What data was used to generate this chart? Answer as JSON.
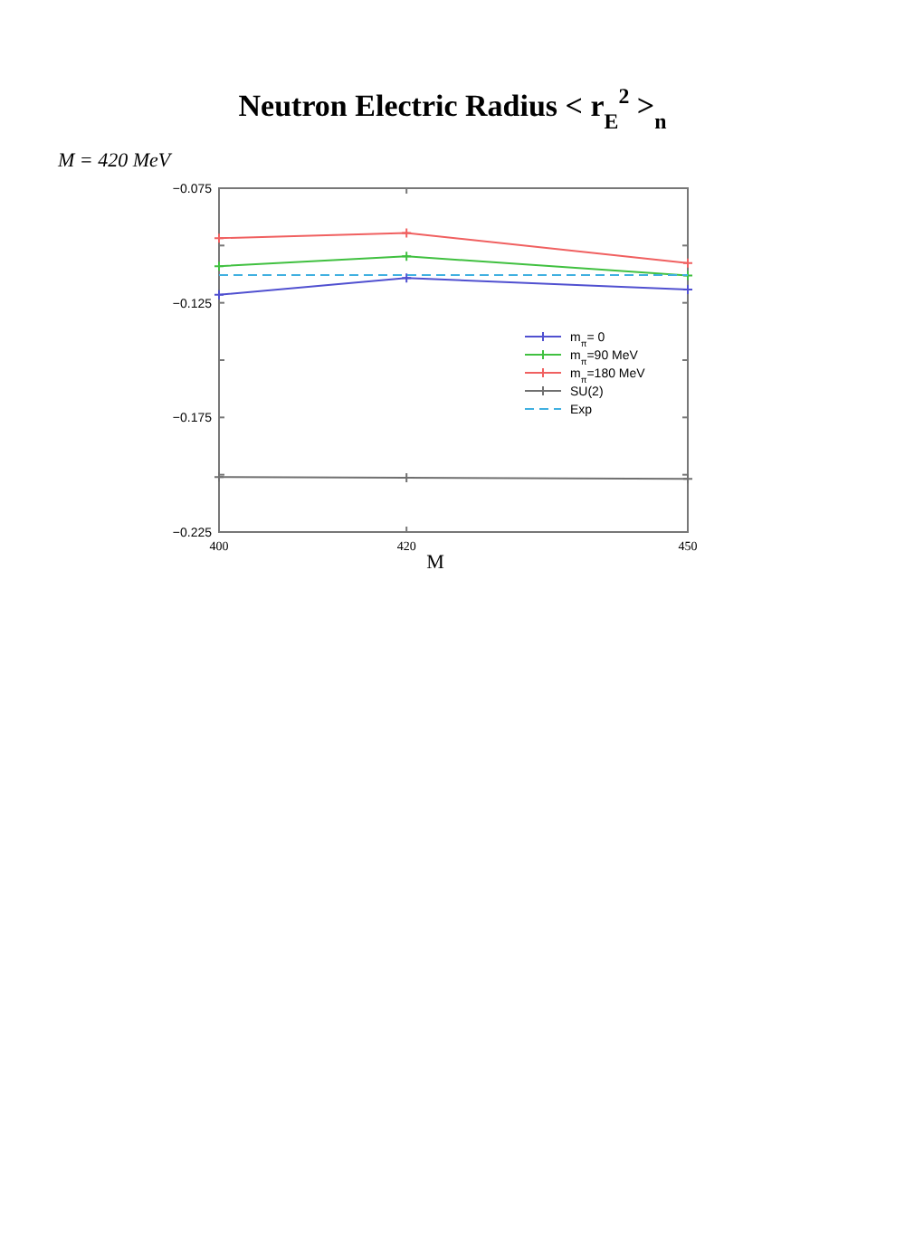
{
  "chart_data": {
    "type": "line",
    "title": "Neutron Electric Radius < r$_{E}$$^{2}$ >$_{n}$",
    "annotations": [
      "M = 420 MeV"
    ],
    "xlabel": "M",
    "x": [
      400,
      420,
      450
    ],
    "xlim": [
      400,
      450
    ],
    "xticks": [
      400,
      420,
      450
    ],
    "ylim": [
      -0.225,
      -0.075
    ],
    "yticks": [
      -0.225,
      {
        "value": -0.2,
        "label": null
      },
      -0.175,
      {
        "value": -0.15,
        "label": null
      },
      -0.125,
      {
        "value": -0.1,
        "label": null
      },
      -0.075
    ],
    "grid": false,
    "legend": "right",
    "marker": "cross",
    "line_style": "solid",
    "series": [
      {
        "name": "m$_{π}$= 0",
        "color": "#5050d0",
        "values": [
          -0.1215,
          -0.1142,
          -0.1192
        ]
      },
      {
        "name": "m$_{π}$=90 MeV",
        "color": "#40c040",
        "values": [
          -0.109,
          -0.1047,
          -0.1131
        ]
      },
      {
        "name": "m$_{π}$=180 MeV",
        "color": "#f06060",
        "values": [
          -0.0968,
          -0.0945,
          -0.1077
        ]
      },
      {
        "name": "SU(2)",
        "color": "#707070",
        "values": [
          -0.201,
          -0.2013,
          -0.2018
        ]
      },
      {
        "name": "Exp",
        "color": "#40b0e0",
        "values": [
          -0.1129,
          -0.1129,
          -0.1129
        ],
        "marker": "none",
        "line_style": "dashed"
      }
    ]
  }
}
